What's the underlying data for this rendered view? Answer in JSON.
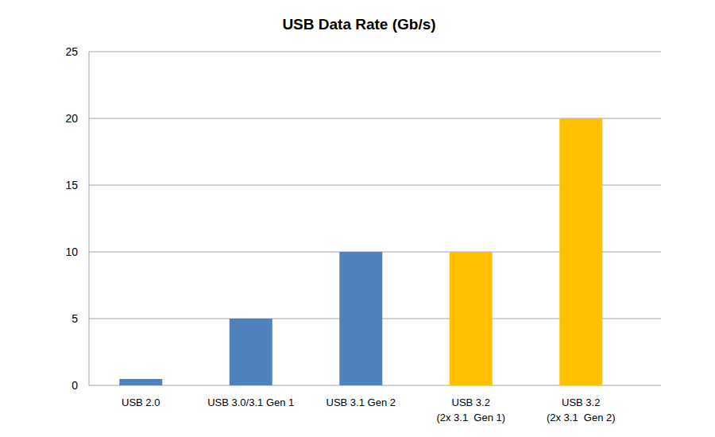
{
  "chart_data": {
    "type": "bar",
    "title": "USB Data Rate (Gb/s)",
    "categories": [
      "USB 2.0",
      "USB 3.0/3.1 Gen 1",
      "USB 3.1 Gen 2",
      "USB 3.2\n(2x 3.1  Gen 1)",
      "USB 3.2\n(2x 3.1  Gen 2)"
    ],
    "values": [
      0.48,
      5,
      10,
      10,
      20
    ],
    "colors": [
      "#4f81bd",
      "#4f81bd",
      "#4f81bd",
      "#ffc000",
      "#ffc000"
    ],
    "ylim": [
      0,
      25
    ],
    "yticks": [
      0,
      5,
      10,
      15,
      20,
      25
    ],
    "grid": true
  }
}
